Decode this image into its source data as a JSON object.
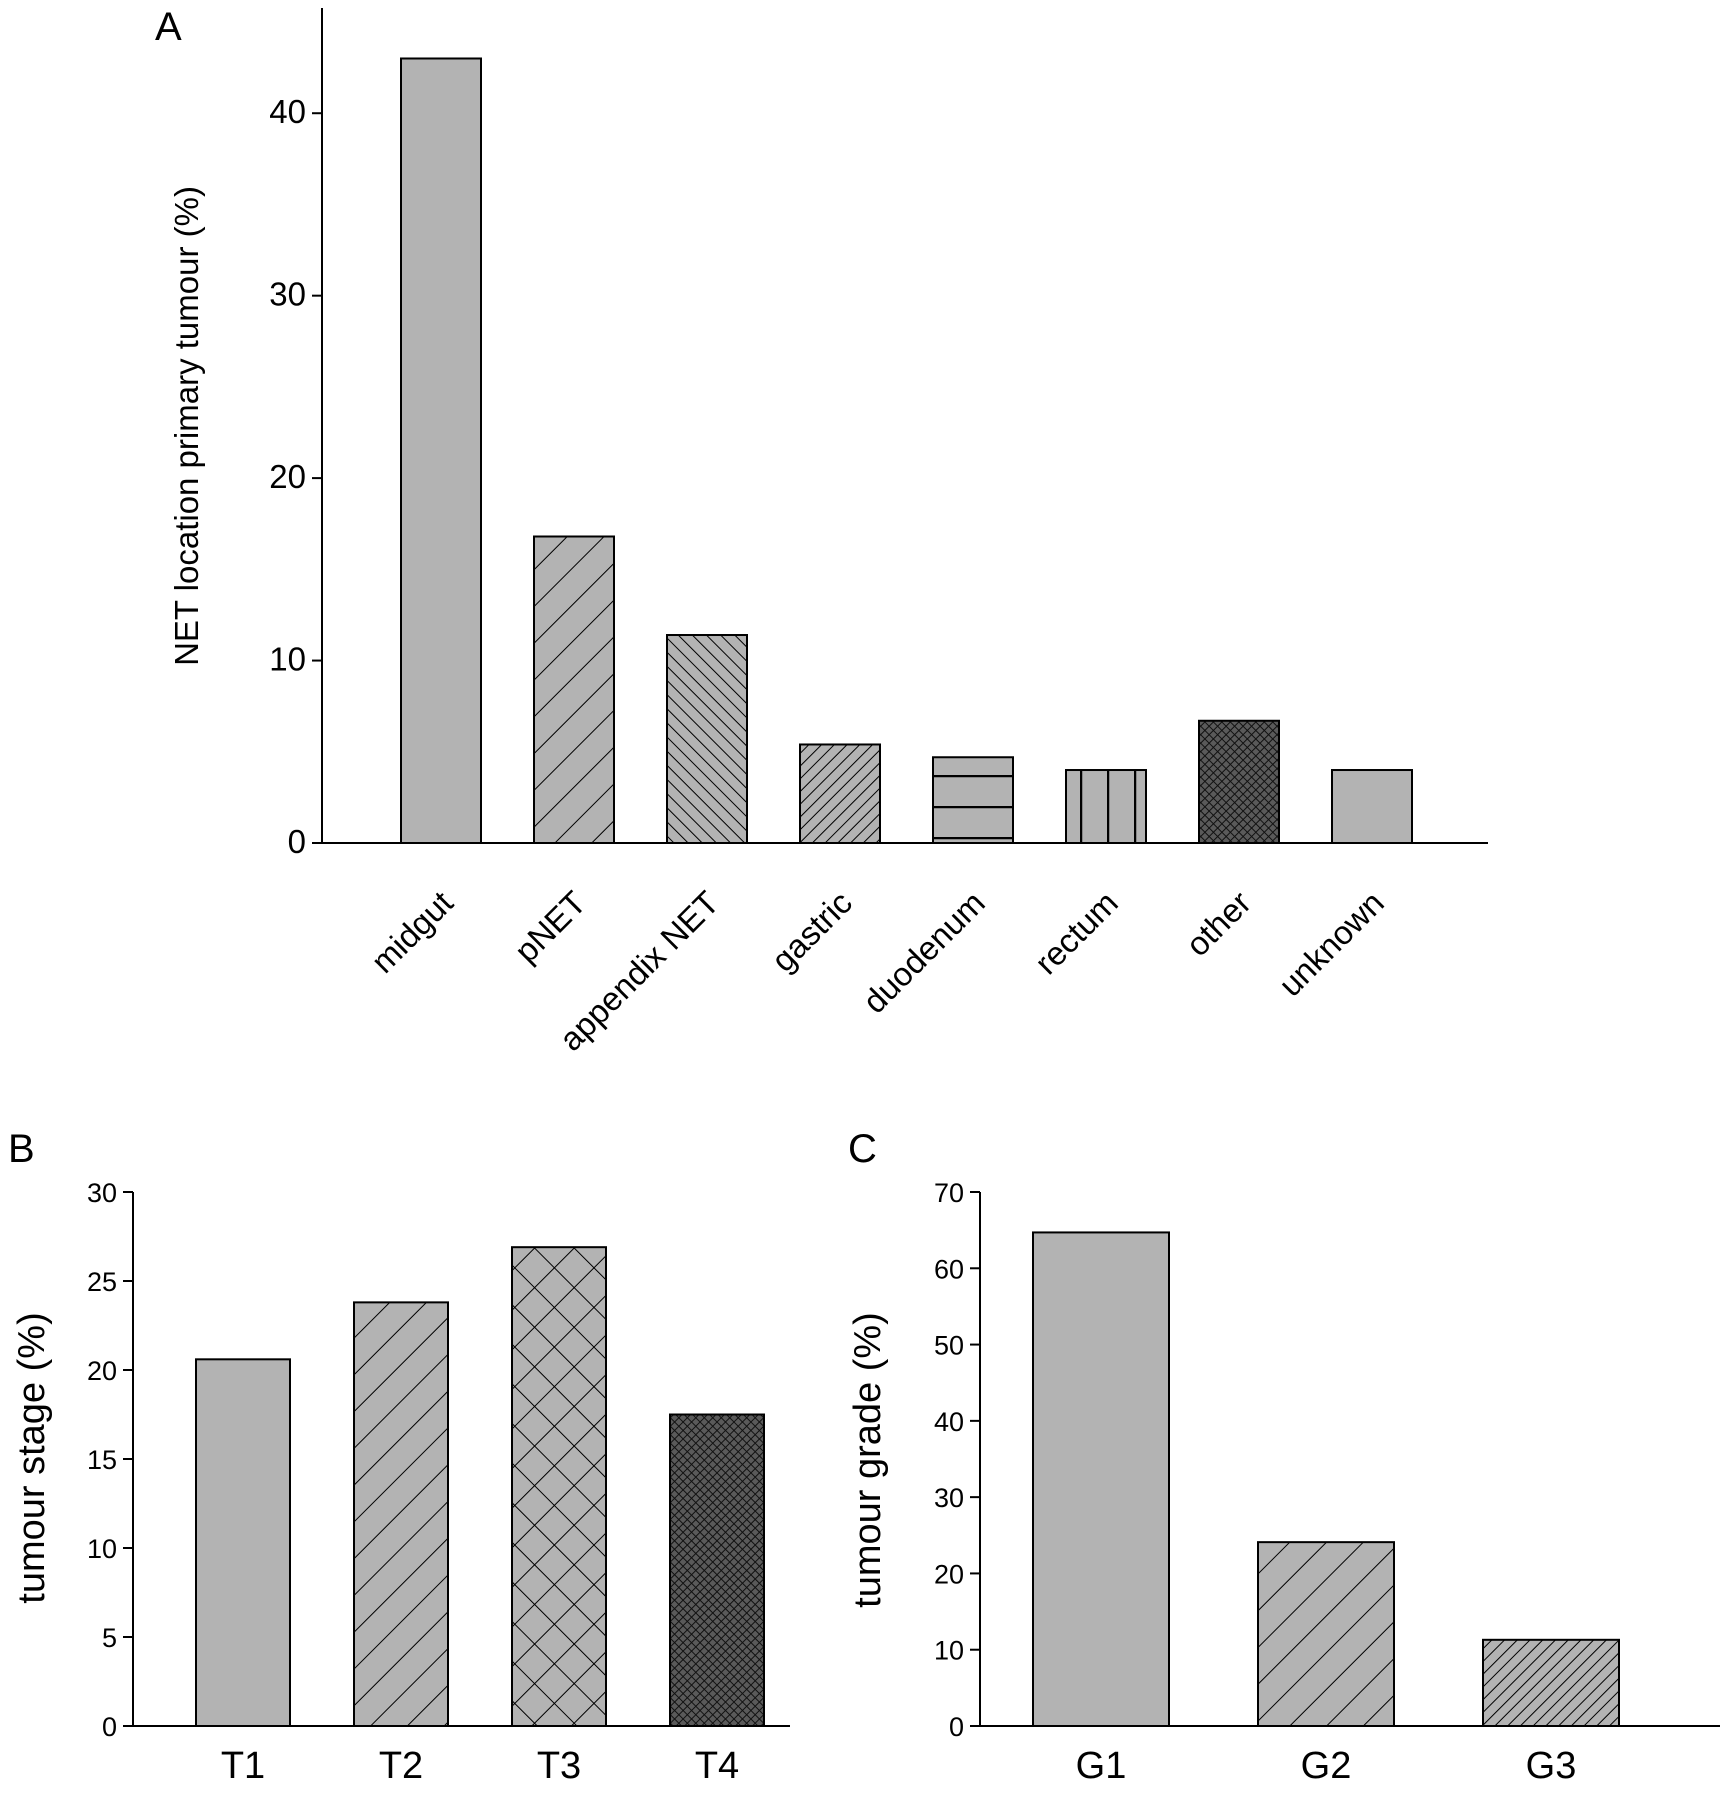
{
  "chart_data": [
    {
      "panel": "A",
      "type": "bar",
      "ylabel": "NET location primary tumour (%)",
      "categories": [
        "midgut",
        "pNET",
        "appendix NET",
        "gastric",
        "duodenum",
        "rectum",
        "other",
        "unknown"
      ],
      "values": [
        43.0,
        16.8,
        11.4,
        5.4,
        4.7,
        4.0,
        6.7,
        4.0
      ],
      "ylim": [
        0,
        45
      ],
      "yticks": [
        0,
        10,
        20,
        30,
        40
      ],
      "patterns": [
        "solid",
        "diag-wide",
        "diag-back-dense",
        "diag-dense",
        "hlines",
        "vlines",
        "crosshatch-dense",
        "solid"
      ],
      "fill_color": "#b3b3b3",
      "dark_fill_color": "#5a5a5a",
      "grid": false
    },
    {
      "panel": "B",
      "type": "bar",
      "ylabel": "tumour stage (%)",
      "categories": [
        "T1",
        "T2",
        "T3",
        "T4"
      ],
      "values": [
        20.6,
        23.8,
        26.9,
        17.5
      ],
      "ylim": [
        0,
        30
      ],
      "yticks": [
        0,
        5,
        10,
        15,
        20,
        25,
        30
      ],
      "patterns": [
        "solid",
        "diag-wide",
        "crosshatch-wide",
        "crosshatch-dense"
      ],
      "fill_color": "#b3b3b3",
      "dark_fill_color": "#5a5a5a",
      "grid": false
    },
    {
      "panel": "C",
      "type": "bar",
      "ylabel": "tumour grade (%)",
      "categories": [
        "G1",
        "G2",
        "G3"
      ],
      "values": [
        64.7,
        24.1,
        11.3
      ],
      "ylim": [
        0,
        70
      ],
      "yticks": [
        0,
        10,
        20,
        30,
        40,
        50,
        60,
        70
      ],
      "patterns": [
        "solid",
        "diag-wide",
        "diag-dense"
      ],
      "fill_color": "#b3b3b3",
      "dark_fill_color": "#5a5a5a",
      "grid": false
    }
  ]
}
